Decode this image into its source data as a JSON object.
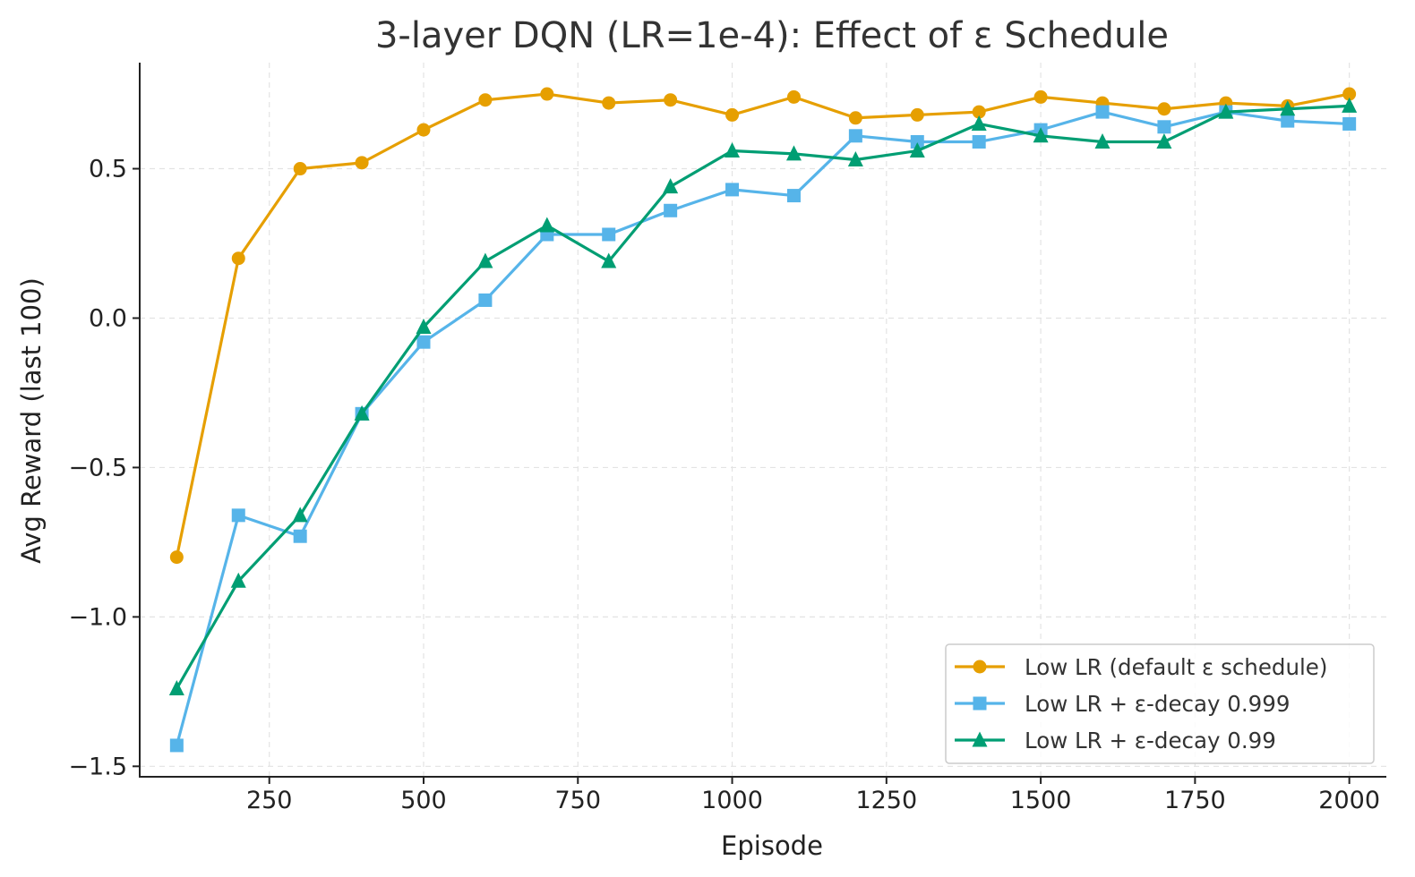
{
  "chart_data": {
    "type": "line",
    "title": "3-layer DQN (LR=1e-4): Effect of ε Schedule",
    "xlabel": "Episode",
    "ylabel": "Avg Reward (last 100)",
    "xlim": [
      40,
      2060
    ],
    "ylim": [
      -1.535,
      0.855
    ],
    "xticks": [
      250,
      500,
      750,
      1000,
      1250,
      1500,
      1750,
      2000
    ],
    "xtick_labels": [
      "250",
      "500",
      "750",
      "1000",
      "1250",
      "1500",
      "1750",
      "2000"
    ],
    "yticks": [
      -1.5,
      -1.0,
      -0.5,
      0.0,
      0.5
    ],
    "ytick_labels": [
      "−1.5",
      "−1.0",
      "−0.5",
      "0.0",
      "0.5"
    ],
    "grid": true,
    "legend_position": "lower-right",
    "x": [
      100,
      200,
      300,
      400,
      500,
      600,
      700,
      800,
      900,
      1000,
      1100,
      1200,
      1300,
      1400,
      1500,
      1600,
      1700,
      1800,
      1900,
      2000
    ],
    "series": [
      {
        "name": "Low LR (default ε schedule)",
        "color": "#E69F00",
        "marker": "circle",
        "values": [
          -0.8,
          0.2,
          0.5,
          0.52,
          0.63,
          0.73,
          0.75,
          0.72,
          0.73,
          0.68,
          0.74,
          0.67,
          0.68,
          0.69,
          0.74,
          0.72,
          0.7,
          0.72,
          0.71,
          0.75
        ]
      },
      {
        "name": "Low LR + ε-decay 0.999",
        "color": "#56B4E9",
        "marker": "square",
        "values": [
          -1.43,
          -0.66,
          -0.73,
          -0.32,
          -0.08,
          0.06,
          0.28,
          0.28,
          0.36,
          0.43,
          0.41,
          0.61,
          0.59,
          0.59,
          0.63,
          0.69,
          0.64,
          0.69,
          0.66,
          0.65
        ]
      },
      {
        "name": "Low LR + ε-decay 0.99",
        "color": "#009E73",
        "marker": "triangle",
        "values": [
          -1.24,
          -0.88,
          -0.66,
          -0.32,
          -0.03,
          0.19,
          0.31,
          0.19,
          0.44,
          0.56,
          0.55,
          0.53,
          0.56,
          0.65,
          0.61,
          0.59,
          0.59,
          0.69,
          0.7,
          0.71
        ]
      }
    ]
  }
}
